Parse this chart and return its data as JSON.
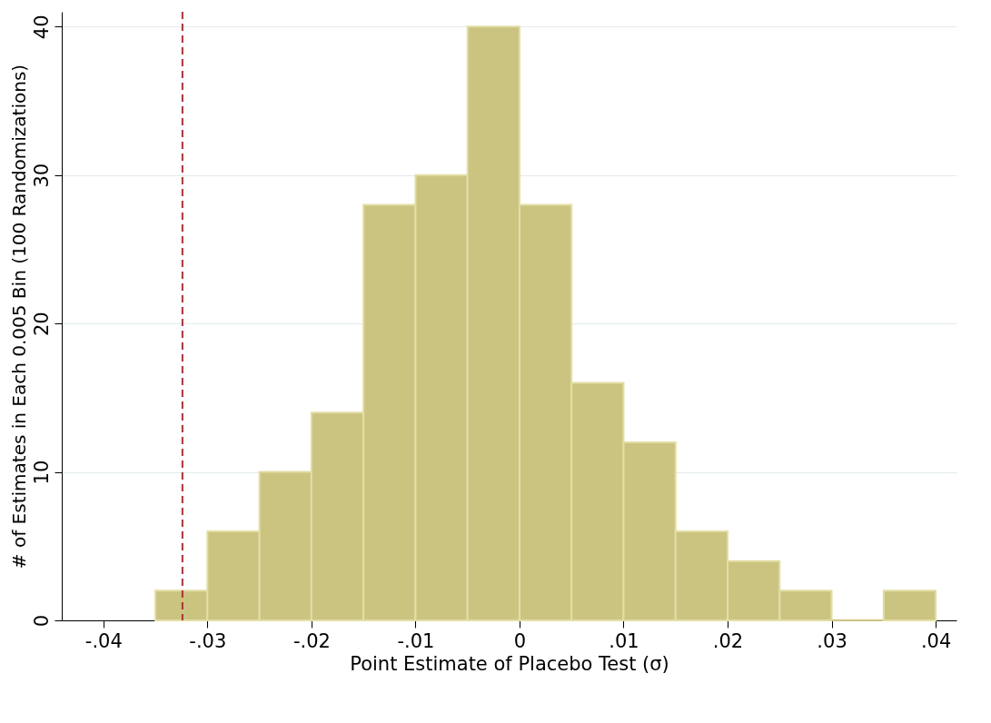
{
  "chart_data": {
    "type": "histogram",
    "xlabel": "Point Estimate of Placebo Test (σ)",
    "ylabel": "# of Estimates in Each 0.005 Bin (100 Randomizations)",
    "bins": [
      -0.035,
      -0.03,
      -0.025,
      -0.02,
      -0.015,
      -0.01,
      -0.005,
      0,
      0.005,
      0.01,
      0.015,
      0.02,
      0.025,
      0.03,
      0.035,
      0.04
    ],
    "values": [
      2,
      6,
      10,
      14,
      28,
      30,
      40,
      28,
      16,
      12,
      6,
      4,
      2,
      0,
      2
    ],
    "color": "#cbc481",
    "xlim": [
      -0.044,
      0.042
    ],
    "xticks": [
      {
        "value": -0.04,
        "label": "-.04"
      },
      {
        "value": -0.03,
        "label": "-.03"
      },
      {
        "value": -0.02,
        "label": "-.02"
      },
      {
        "value": -0.01,
        "label": "-.01"
      },
      0,
      {
        "value": 0.01,
        "label": ".01"
      },
      {
        "value": 0.02,
        "label": ".02"
      },
      {
        "value": 0.03,
        "label": ".03"
      },
      {
        "value": 0.04,
        "label": ".04"
      }
    ],
    "ylim": [
      0,
      41
    ],
    "yticks": [
      0,
      10,
      20,
      30,
      40
    ],
    "grid": "y",
    "ref_lines": [
      {
        "axis": "x",
        "value": -0.0324,
        "color": "#a83236",
        "line_style": "dashed"
      }
    ]
  }
}
